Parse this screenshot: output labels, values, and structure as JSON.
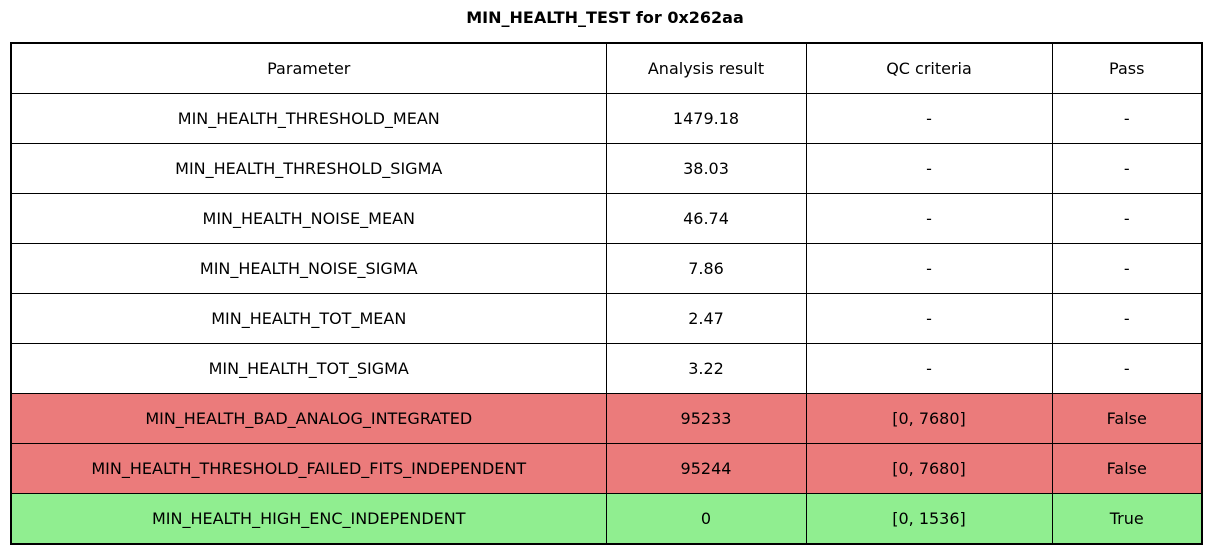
{
  "title": "MIN_HEALTH_TEST for 0x262aa",
  "colors": {
    "fail_row": "#EB7B7B",
    "pass_row": "#90EE90",
    "neutral_row": "#FFFFFF",
    "border": "#000000",
    "background": "#FFFFFF"
  },
  "table": {
    "headers": [
      "Parameter",
      "Analysis result",
      "QC criteria",
      "Pass"
    ],
    "rows": [
      {
        "parameter": "MIN_HEALTH_THRESHOLD_MEAN",
        "result": "1479.18",
        "qc": "-",
        "pass": "-",
        "status": "neutral"
      },
      {
        "parameter": "MIN_HEALTH_THRESHOLD_SIGMA",
        "result": "38.03",
        "qc": "-",
        "pass": "-",
        "status": "neutral"
      },
      {
        "parameter": "MIN_HEALTH_NOISE_MEAN",
        "result": "46.74",
        "qc": "-",
        "pass": "-",
        "status": "neutral"
      },
      {
        "parameter": "MIN_HEALTH_NOISE_SIGMA",
        "result": "7.86",
        "qc": "-",
        "pass": "-",
        "status": "neutral"
      },
      {
        "parameter": "MIN_HEALTH_TOT_MEAN",
        "result": "2.47",
        "qc": "-",
        "pass": "-",
        "status": "neutral"
      },
      {
        "parameter": "MIN_HEALTH_TOT_SIGMA",
        "result": "3.22",
        "qc": "-",
        "pass": "-",
        "status": "neutral"
      },
      {
        "parameter": "MIN_HEALTH_BAD_ANALOG_INTEGRATED",
        "result": "95233",
        "qc": "[0, 7680]",
        "pass": "False",
        "status": "fail"
      },
      {
        "parameter": "MIN_HEALTH_THRESHOLD_FAILED_FITS_INDEPENDENT",
        "result": "95244",
        "qc": "[0, 7680]",
        "pass": "False",
        "status": "fail"
      },
      {
        "parameter": "MIN_HEALTH_HIGH_ENC_INDEPENDENT",
        "result": "0",
        "qc": "[0, 1536]",
        "pass": "True",
        "status": "pass"
      }
    ]
  },
  "chart_data": {
    "type": "table",
    "title": "MIN_HEALTH_TEST for 0x262aa",
    "columns": [
      "Parameter",
      "Analysis result",
      "QC criteria",
      "Pass"
    ],
    "rows": [
      [
        "MIN_HEALTH_THRESHOLD_MEAN",
        "1479.18",
        "-",
        "-"
      ],
      [
        "MIN_HEALTH_THRESHOLD_SIGMA",
        "38.03",
        "-",
        "-"
      ],
      [
        "MIN_HEALTH_NOISE_MEAN",
        "46.74",
        "-",
        "-"
      ],
      [
        "MIN_HEALTH_NOISE_SIGMA",
        "7.86",
        "-",
        "-"
      ],
      [
        "MIN_HEALTH_TOT_MEAN",
        "2.47",
        "-",
        "-"
      ],
      [
        "MIN_HEALTH_TOT_SIGMA",
        "3.22",
        "-",
        "-"
      ],
      [
        "MIN_HEALTH_BAD_ANALOG_INTEGRATED",
        "95233",
        "[0, 7680]",
        "False"
      ],
      [
        "MIN_HEALTH_THRESHOLD_FAILED_FITS_INDEPENDENT",
        "95244",
        "[0, 7680]",
        "False"
      ],
      [
        "MIN_HEALTH_HIGH_ENC_INDEPENDENT",
        "0",
        "[0, 1536]",
        "True"
      ]
    ],
    "row_highlight": [
      "none",
      "none",
      "none",
      "none",
      "none",
      "none",
      "fail",
      "fail",
      "pass"
    ],
    "layout_hints": {
      "header_background": "#FFFFFF",
      "grid": true,
      "all_cells_centered": true
    }
  }
}
